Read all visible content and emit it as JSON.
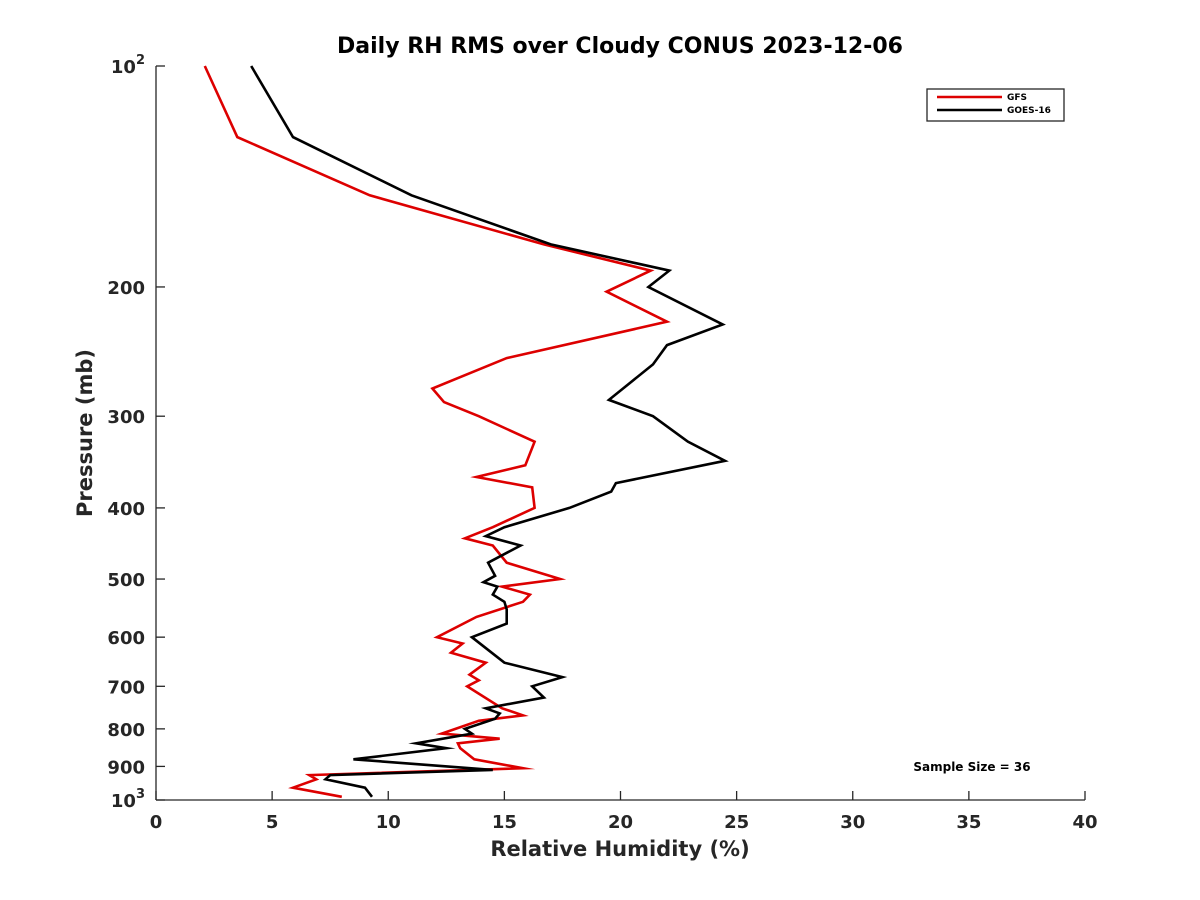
{
  "chart_data": {
    "type": "line",
    "title": "Daily RH RMS over Cloudy CONUS 2023-12-06",
    "xlabel": "Relative Humidity (%)",
    "ylabel": "Pressure (mb)",
    "xlim": [
      0,
      40
    ],
    "ylim": [
      100,
      1000
    ],
    "y_scale": "log",
    "y_reversed": true,
    "x_ticks": [
      "0",
      "5",
      "10",
      "15",
      "20",
      "25",
      "30",
      "35",
      "40"
    ],
    "y_ticks": [
      {
        "value": 100,
        "base": "10",
        "exp": "2"
      },
      {
        "value": 200,
        "label": "200"
      },
      {
        "value": 300,
        "label": "300"
      },
      {
        "value": 400,
        "label": "400"
      },
      {
        "value": 500,
        "label": "500"
      },
      {
        "value": 600,
        "label": "600"
      },
      {
        "value": 700,
        "label": "700"
      },
      {
        "value": 800,
        "label": "800"
      },
      {
        "value": 900,
        "label": "900"
      },
      {
        "value": 1000,
        "base": "10",
        "exp": "3"
      }
    ],
    "legend_position": "top-right",
    "grid": false,
    "annotation": "Sample Size = 36",
    "series": [
      {
        "name": "GFS",
        "color": "#dd0000",
        "points": [
          [
            2.1,
            100
          ],
          [
            3.5,
            125
          ],
          [
            9.2,
            150
          ],
          [
            16.7,
            175
          ],
          [
            21.3,
            190
          ],
          [
            19.4,
            203
          ],
          [
            22.0,
            223
          ],
          [
            15.1,
            250
          ],
          [
            11.9,
            275
          ],
          [
            12.4,
            287
          ],
          [
            13.9,
            300
          ],
          [
            16.3,
            325
          ],
          [
            15.9,
            350
          ],
          [
            13.8,
            363
          ],
          [
            16.2,
            375
          ],
          [
            16.3,
            400
          ],
          [
            14.5,
            425
          ],
          [
            13.3,
            440
          ],
          [
            14.5,
            450
          ],
          [
            15.1,
            475
          ],
          [
            17.4,
            500
          ],
          [
            14.9,
            512
          ],
          [
            16.1,
            525
          ],
          [
            15.8,
            537
          ],
          [
            13.8,
            563
          ],
          [
            12.1,
            600
          ],
          [
            13.2,
            612
          ],
          [
            12.7,
            630
          ],
          [
            14.2,
            650
          ],
          [
            13.5,
            675
          ],
          [
            13.9,
            687
          ],
          [
            13.4,
            700
          ],
          [
            14.9,
            750
          ],
          [
            15.8,
            767
          ],
          [
            13.9,
            780
          ],
          [
            12.3,
            812
          ],
          [
            14.8,
            825
          ],
          [
            13.0,
            837
          ],
          [
            13.1,
            850
          ],
          [
            13.7,
            880
          ],
          [
            15.8,
            905
          ],
          [
            6.6,
            925
          ],
          [
            6.9,
            937
          ],
          [
            5.9,
            962
          ],
          [
            8.0,
            990
          ]
        ]
      },
      {
        "name": "GOES-16",
        "color": "#000000",
        "points": [
          [
            4.1,
            100
          ],
          [
            5.9,
            125
          ],
          [
            11.0,
            150
          ],
          [
            17.0,
            175
          ],
          [
            22.1,
            190
          ],
          [
            21.2,
            200
          ],
          [
            24.4,
            225
          ],
          [
            22.0,
            240
          ],
          [
            21.4,
            255
          ],
          [
            19.5,
            285
          ],
          [
            21.4,
            300
          ],
          [
            22.9,
            325
          ],
          [
            24.5,
            345
          ],
          [
            19.8,
            370
          ],
          [
            19.6,
            380
          ],
          [
            17.8,
            400
          ],
          [
            15.0,
            425
          ],
          [
            14.2,
            437
          ],
          [
            15.7,
            450
          ],
          [
            14.3,
            475
          ],
          [
            14.6,
            495
          ],
          [
            14.1,
            505
          ],
          [
            14.7,
            512
          ],
          [
            14.5,
            525
          ],
          [
            15.0,
            537
          ],
          [
            15.1,
            550
          ],
          [
            15.1,
            575
          ],
          [
            13.6,
            600
          ],
          [
            15.0,
            650
          ],
          [
            17.5,
            680
          ],
          [
            16.2,
            700
          ],
          [
            16.7,
            725
          ],
          [
            14.2,
            750
          ],
          [
            14.8,
            762
          ],
          [
            14.6,
            775
          ],
          [
            13.3,
            800
          ],
          [
            13.6,
            812
          ],
          [
            11.2,
            837
          ],
          [
            12.5,
            850
          ],
          [
            8.5,
            880
          ],
          [
            14.5,
            910
          ],
          [
            7.5,
            925
          ],
          [
            7.3,
            937
          ],
          [
            9.0,
            962
          ],
          [
            9.3,
            990
          ]
        ]
      }
    ]
  }
}
